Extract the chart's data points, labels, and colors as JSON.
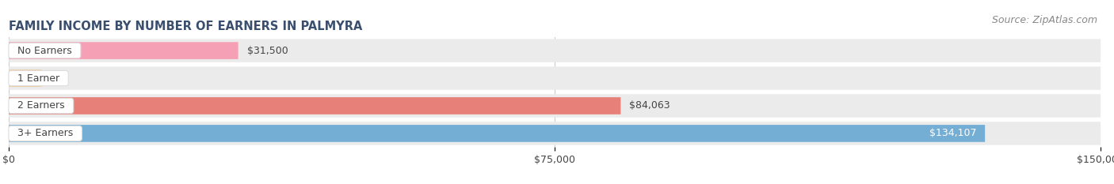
{
  "title": "FAMILY INCOME BY NUMBER OF EARNERS IN PALMYRA",
  "source": "Source: ZipAtlas.com",
  "categories": [
    "No Earners",
    "1 Earner",
    "2 Earners",
    "3+ Earners"
  ],
  "values": [
    31500,
    0,
    84063,
    134107
  ],
  "bar_colors": [
    "#f5a0b5",
    "#f5c896",
    "#e8807a",
    "#74aed4"
  ],
  "row_bg_color": "#ebebeb",
  "xlim": [
    0,
    150000
  ],
  "xticks": [
    0,
    75000,
    150000
  ],
  "xtick_labels": [
    "$0",
    "$75,000",
    "$150,000"
  ],
  "bar_height": 0.62,
  "title_fontsize": 10.5,
  "label_fontsize": 9,
  "value_fontsize": 9,
  "axis_fontsize": 9,
  "source_fontsize": 9,
  "bg_color": "#ffffff",
  "text_color": "#444444",
  "source_color": "#888888",
  "grid_color": "#cccccc",
  "title_color": "#3a4f6e"
}
